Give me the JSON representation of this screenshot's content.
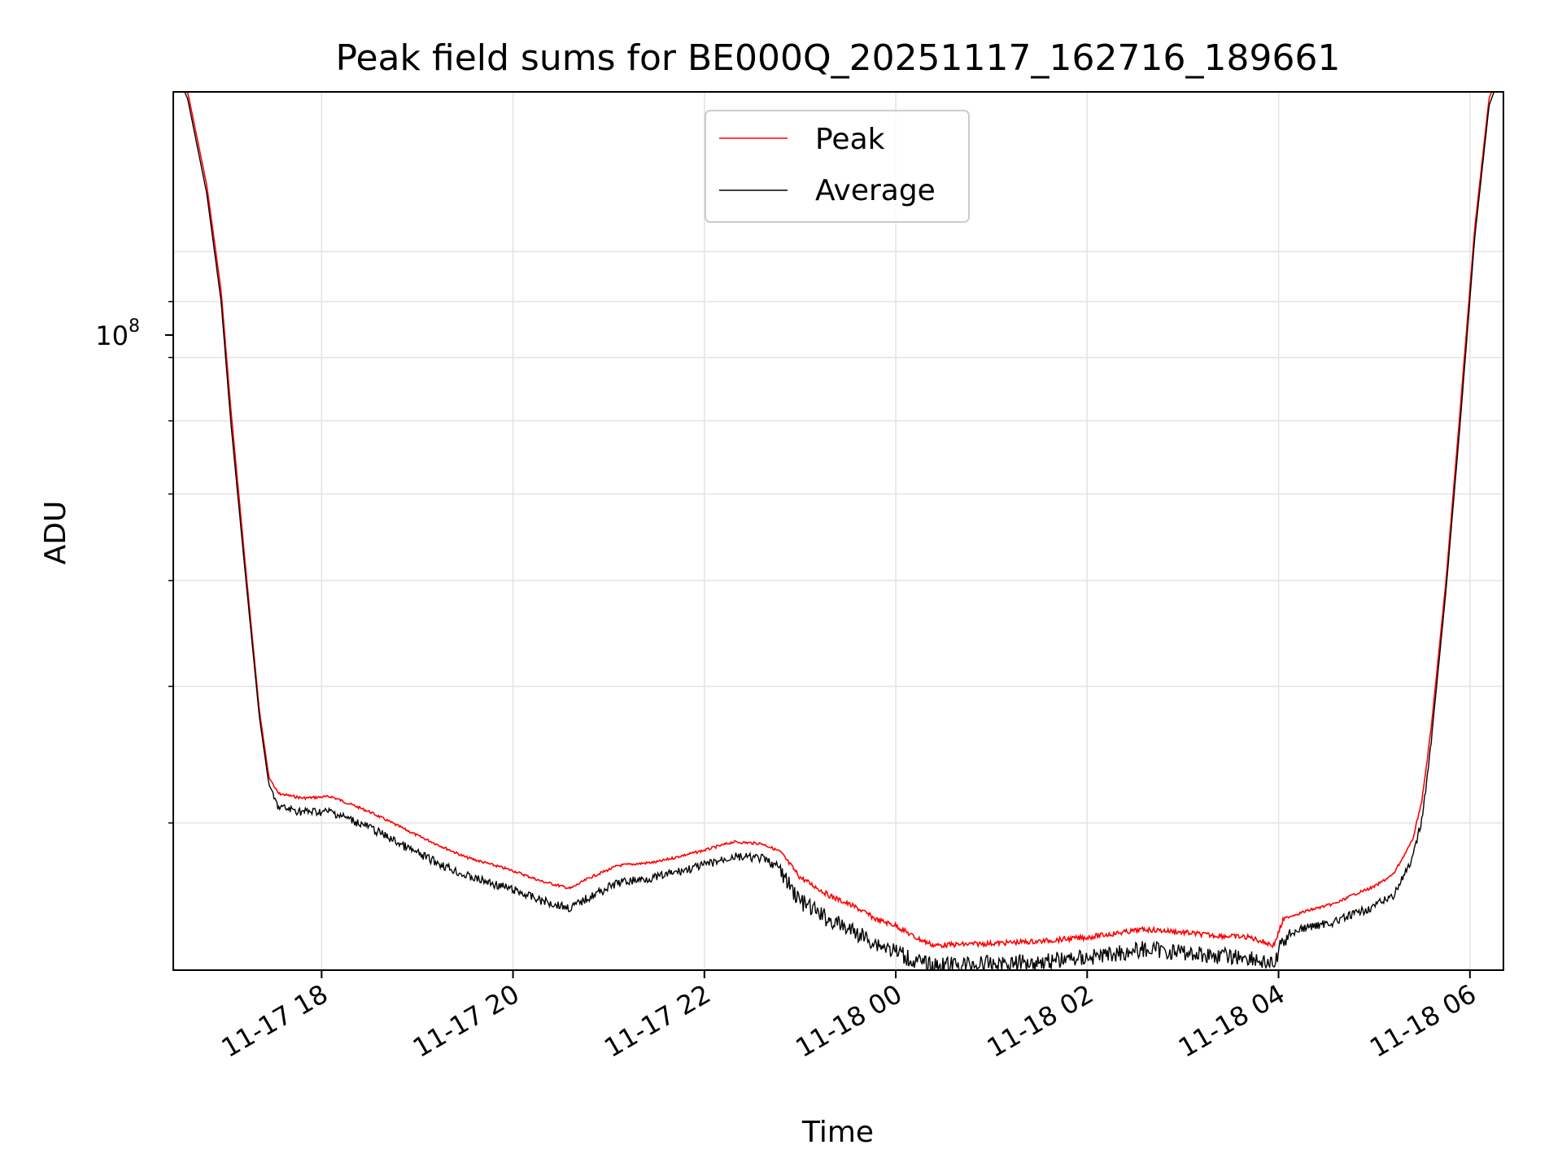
{
  "chart_data": {
    "type": "line",
    "title": "Peak field sums for BE000Q_20251117_162716_189661",
    "xlabel": "Time",
    "ylabel": "ADU",
    "yscale": "log",
    "grid": true,
    "legend_position": "upper-center",
    "x_unit": "hours since 2025-11-17 00:00",
    "xlim": [
      16.45,
      30.35
    ],
    "ylim": [
      22000000,
      140000000
    ],
    "x_ticks": [
      {
        "value": 18,
        "label": "11-17 18"
      },
      {
        "value": 20,
        "label": "11-17 20"
      },
      {
        "value": 22,
        "label": "11-17 22"
      },
      {
        "value": 24,
        "label": "11-18 00"
      },
      {
        "value": 26,
        "label": "11-18 02"
      },
      {
        "value": 28,
        "label": "11-18 04"
      },
      {
        "value": 30,
        "label": "11-18 06"
      }
    ],
    "y_major_tick": {
      "value": 100000000,
      "base": "10",
      "exponent": "8"
    },
    "y_minor_ticks": [
      30000000,
      40000000,
      50000000,
      60000000,
      70000000,
      80000000,
      90000000
    ],
    "series": [
      {
        "name": "Peak",
        "color": "#ff0000",
        "x": [
          16.45,
          16.6,
          16.8,
          16.95,
          17.05,
          17.2,
          17.35,
          17.45,
          17.55,
          17.8,
          18.1,
          18.5,
          19.0,
          19.5,
          20.0,
          20.3,
          20.6,
          20.8,
          21.1,
          21.5,
          22.0,
          22.3,
          22.6,
          22.8,
          23.0,
          23.3,
          23.6,
          23.8,
          24.0,
          24.2,
          24.4,
          25.0,
          25.5,
          26.0,
          26.3,
          26.6,
          26.9,
          27.3,
          27.7,
          27.95,
          28.05,
          28.3,
          28.6,
          28.8,
          29.0,
          29.2,
          29.4,
          29.5,
          29.6,
          29.75,
          29.9,
          30.05,
          30.2,
          30.35
        ],
        "y": [
          150000000,
          140000000,
          115000000,
          92000000,
          72000000,
          52000000,
          38000000,
          33000000,
          32000000,
          31700000,
          31800000,
          30800000,
          29300000,
          28000000,
          27200000,
          26600000,
          26200000,
          26800000,
          27500000,
          27700000,
          28400000,
          28900000,
          28800000,
          28300000,
          26900000,
          25900000,
          25200000,
          24600000,
          24300000,
          23700000,
          23300000,
          23400000,
          23500000,
          23700000,
          23900000,
          24100000,
          24000000,
          23800000,
          23700000,
          23300000,
          24600000,
          25000000,
          25400000,
          25900000,
          26300000,
          27000000,
          29000000,
          31600000,
          37000000,
          50000000,
          72000000,
          105000000,
          138000000,
          150000000
        ]
      },
      {
        "name": "Average",
        "color": "#000000",
        "x": [
          16.45,
          16.6,
          16.8,
          16.95,
          17.05,
          17.2,
          17.35,
          17.45,
          17.55,
          17.8,
          18.1,
          18.5,
          19.0,
          19.5,
          20.0,
          20.3,
          20.6,
          20.8,
          21.1,
          21.5,
          22.0,
          22.3,
          22.6,
          22.8,
          23.0,
          23.3,
          23.6,
          23.8,
          24.0,
          24.2,
          24.4,
          25.0,
          25.5,
          26.0,
          26.3,
          26.6,
          26.9,
          27.3,
          27.7,
          27.95,
          28.05,
          28.3,
          28.6,
          28.8,
          29.0,
          29.2,
          29.4,
          29.5,
          29.6,
          29.75,
          29.9,
          30.05,
          30.2,
          30.35
        ],
        "y": [
          148000000,
          138000000,
          113000000,
          90000000,
          70000000,
          51000000,
          37500000,
          32500000,
          31300000,
          31000000,
          31000000,
          30000000,
          28400000,
          27100000,
          26300000,
          25700000,
          25300000,
          25900000,
          26700000,
          27000000,
          27700000,
          28200000,
          28100000,
          27500000,
          25900000,
          24900000,
          24200000,
          23700000,
          23300000,
          22800000,
          22600000,
          22700000,
          22800000,
          23000000,
          23200000,
          23400000,
          23300000,
          23100000,
          23000000,
          22600000,
          23900000,
          24300000,
          24600000,
          25000000,
          25400000,
          26000000,
          28000000,
          30600000,
          36000000,
          49000000,
          70000000,
          103000000,
          136000000,
          148000000
        ]
      }
    ]
  }
}
